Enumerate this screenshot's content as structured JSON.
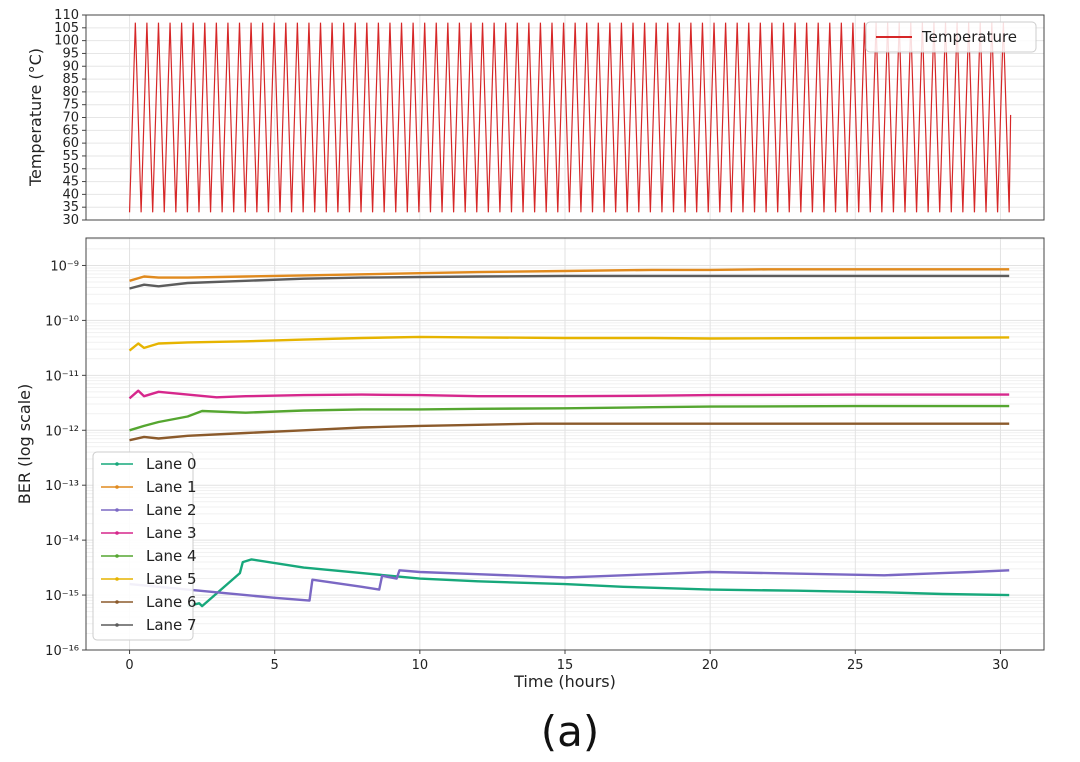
{
  "figure_caption": "(a)",
  "chart_data": [
    {
      "type": "line",
      "name": "temperature-panel",
      "ylabel": "Temperature (°C)",
      "ylabel_color": "#d62728",
      "xlim": [
        -1.5,
        31.5
      ],
      "ylim": [
        30,
        110
      ],
      "yticks": [
        30,
        35,
        40,
        45,
        50,
        55,
        60,
        65,
        70,
        75,
        80,
        85,
        90,
        95,
        100,
        105,
        110
      ],
      "grid": true,
      "legend": "top-right",
      "series": [
        {
          "name": "Temperature",
          "color": "#d62728",
          "waveform": "triangle",
          "min": 33,
          "max": 107,
          "cycles": 76,
          "x_start": 0,
          "x_end": 30.3,
          "end_value": 71
        }
      ]
    },
    {
      "type": "line",
      "name": "ber-panel",
      "xlabel": "Time (hours)",
      "ylabel": "BER (log scale)",
      "yscale": "log",
      "xlim": [
        -1.5,
        31.5
      ],
      "ylim_exp": [
        -16,
        -8.5
      ],
      "xticks": [
        0,
        5,
        10,
        15,
        20,
        25,
        30
      ],
      "ytick_labels": [
        {
          "exp": -9,
          "label": "10⁻⁹"
        },
        {
          "exp": -10,
          "label": "10⁻¹⁰"
        },
        {
          "exp": -11,
          "label": "10⁻¹¹"
        },
        {
          "exp": -12,
          "label": "10⁻¹²"
        },
        {
          "exp": -13,
          "label": "10⁻¹³"
        },
        {
          "exp": -14,
          "label": "10⁻¹⁴"
        },
        {
          "exp": -15,
          "label": "10⁻¹⁵"
        },
        {
          "exp": -16,
          "label": "10⁻¹⁶"
        }
      ],
      "grid": true,
      "legend": "lower-left",
      "series": [
        {
          "name": "Lane 0",
          "color": "#17a87b",
          "x": [
            2.0,
            2.4,
            2.5,
            3.8,
            3.9,
            4.2,
            6.0,
            8.0,
            10.0,
            12.0,
            15.0,
            17.0,
            20.0,
            23.0,
            26.0,
            28.0,
            30.3
          ],
          "log10_y": [
            -15.2,
            -15.15,
            -15.2,
            -14.6,
            -14.4,
            -14.35,
            -14.5,
            -14.6,
            -14.7,
            -14.75,
            -14.8,
            -14.85,
            -14.9,
            -14.92,
            -14.95,
            -14.98,
            -15.0
          ]
        },
        {
          "name": "Lane 1",
          "color": "#e08a1e",
          "x": [
            0,
            0.5,
            1,
            2,
            4,
            6,
            8,
            10,
            12,
            15,
            18,
            20,
            22,
            25,
            28,
            30.3
          ],
          "log10_y": [
            -9.28,
            -9.2,
            -9.22,
            -9.22,
            -9.2,
            -9.18,
            -9.16,
            -9.14,
            -9.12,
            -9.1,
            -9.08,
            -9.08,
            -9.07,
            -9.07,
            -9.07,
            -9.07
          ]
        },
        {
          "name": "Lane 2",
          "color": "#7b68c4",
          "x": [
            0.0,
            1.0,
            2.0,
            3.0,
            4.0,
            5.0,
            6.2,
            6.3,
            8.0,
            8.6,
            8.7,
            9.2,
            9.3,
            10.0,
            12.0,
            14.0,
            15.0,
            16.0,
            18.0,
            20.0,
            22.0,
            24.0,
            26.0,
            28.0,
            29.0,
            30.3
          ],
          "log10_y": [
            -14.8,
            -14.85,
            -14.9,
            -14.95,
            -15.0,
            -15.05,
            -15.1,
            -14.72,
            -14.85,
            -14.9,
            -14.65,
            -14.7,
            -14.55,
            -14.58,
            -14.62,
            -14.66,
            -14.68,
            -14.66,
            -14.62,
            -14.58,
            -14.6,
            -14.62,
            -14.64,
            -14.6,
            -14.58,
            -14.55
          ]
        },
        {
          "name": "Lane 3",
          "color": "#d6278c",
          "x": [
            0,
            0.3,
            0.5,
            1,
            2,
            3,
            4,
            6,
            8,
            10,
            12,
            15,
            18,
            20,
            25,
            30.3
          ],
          "log10_y": [
            -11.42,
            -11.28,
            -11.38,
            -11.3,
            -11.35,
            -11.4,
            -11.38,
            -11.36,
            -11.35,
            -11.36,
            -11.38,
            -11.38,
            -11.37,
            -11.36,
            -11.35,
            -11.35
          ]
        },
        {
          "name": "Lane 4",
          "color": "#55a630",
          "x": [
            0,
            0.5,
            1,
            2,
            2.5,
            4,
            6,
            8,
            10,
            12,
            15,
            18,
            20,
            25,
            30.3
          ],
          "log10_y": [
            -12.0,
            -11.92,
            -11.85,
            -11.75,
            -11.65,
            -11.68,
            -11.64,
            -11.62,
            -11.62,
            -11.61,
            -11.6,
            -11.58,
            -11.57,
            -11.56,
            -11.56
          ]
        },
        {
          "name": "Lane 5",
          "color": "#e6b400",
          "x": [
            0,
            0.3,
            0.5,
            1,
            2,
            4,
            6,
            8,
            10,
            12,
            15,
            18,
            20,
            25,
            30.3
          ],
          "log10_y": [
            -10.55,
            -10.42,
            -10.5,
            -10.42,
            -10.4,
            -10.38,
            -10.35,
            -10.32,
            -10.3,
            -10.31,
            -10.32,
            -10.32,
            -10.33,
            -10.32,
            -10.31
          ]
        },
        {
          "name": "Lane 6",
          "color": "#8b5a2b",
          "x": [
            0,
            0.5,
            1,
            2,
            4,
            6,
            8,
            10,
            12,
            14,
            16,
            20,
            25,
            30.3
          ],
          "log10_y": [
            -12.18,
            -12.12,
            -12.15,
            -12.1,
            -12.05,
            -12.0,
            -11.95,
            -11.92,
            -11.9,
            -11.88,
            -11.88,
            -11.88,
            -11.88,
            -11.88
          ]
        },
        {
          "name": "Lane 7",
          "color": "#5c5c5c",
          "x": [
            0,
            0.5,
            1,
            2,
            4,
            6,
            8,
            10,
            12,
            15,
            18,
            20,
            25,
            30.3
          ],
          "log10_y": [
            -9.42,
            -9.35,
            -9.38,
            -9.32,
            -9.28,
            -9.24,
            -9.22,
            -9.21,
            -9.2,
            -9.19,
            -9.19,
            -9.19,
            -9.19,
            -9.19
          ]
        }
      ]
    }
  ]
}
